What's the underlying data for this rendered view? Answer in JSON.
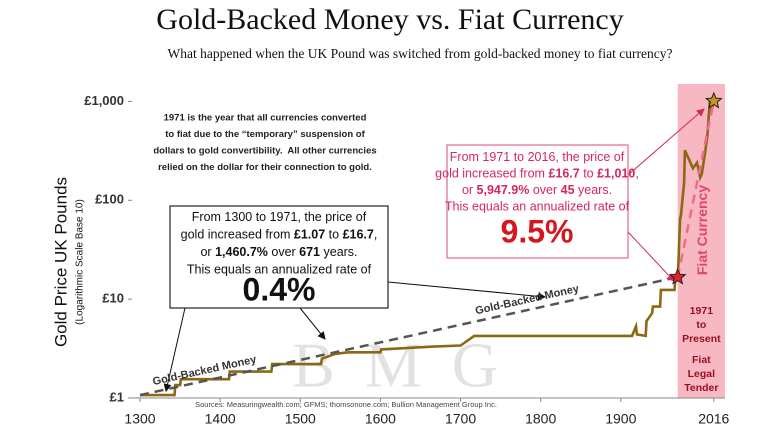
{
  "chart_data": {
    "type": "line",
    "title": "Gold-Backed Money vs. Fiat Currency",
    "subtitle": "What happened when the UK Pound was switched from gold-backed money to fiat currency?",
    "y_label": "Gold Price UK Pounds",
    "y_label_note": "(Logarithmic Scale Base 10)",
    "log_y": true,
    "xlim": [
      1290,
      2030
    ],
    "ylim": [
      1,
      1500
    ],
    "xticks": [
      1300,
      1400,
      1500,
      1600,
      1700,
      1800,
      1900,
      2016
    ],
    "yticks": [
      {
        "value": 1,
        "label": "£1"
      },
      {
        "value": 10,
        "label": "£10"
      },
      {
        "value": 100,
        "label": "£100"
      },
      {
        "value": 1000,
        "label": "£1,000"
      }
    ],
    "series": [
      {
        "color": "#8b6914",
        "x": [
          1300,
          1343,
          1344,
          1350,
          1351,
          1411,
          1412,
          1464,
          1465,
          1526,
          1527,
          1544,
          1560,
          1600,
          1601,
          1663,
          1700,
          1717,
          1914,
          1919,
          1920,
          1931,
          1932,
          1939,
          1940,
          1949,
          1950,
          1967,
          1968,
          1971,
          1972,
          1973,
          1974,
          1975,
          1979,
          1980,
          1985,
          1990,
          1995,
          1999,
          2001,
          2005,
          2008,
          2011,
          2013,
          2016
        ],
        "values": [
          1.07,
          1.07,
          1.35,
          1.35,
          1.55,
          1.55,
          1.85,
          1.85,
          2.2,
          2.2,
          2.5,
          2.8,
          2.9,
          2.9,
          3.1,
          3.3,
          3.4,
          4.25,
          4.25,
          5.3,
          4.4,
          4.25,
          6.0,
          7.2,
          8.4,
          8.4,
          12.4,
          12.4,
          15.5,
          16.7,
          24,
          40,
          65,
          70,
          150,
          320,
          260,
          210,
          240,
          170,
          185,
          300,
          450,
          1000,
          800,
          1010
        ]
      },
      {
        "name": "Gold-Backed Money",
        "color": "#555555",
        "dashed": true,
        "marker_color": "#e3232c",
        "x": [
          1300,
          1971
        ],
        "values": [
          1.07,
          16.7
        ]
      },
      {
        "name": "Fiat Currency",
        "color": "#ee6d86",
        "dashed": true,
        "marker_color": "#c8961e",
        "x": [
          1971,
          2016
        ],
        "values": [
          16.7,
          1010
        ]
      }
    ],
    "shaded_color": "#f7b8c3",
    "shaded_labels": [
      [
        "1971",
        "to",
        "Present"
      ],
      [
        "Fiat",
        "Legal",
        "Tender"
      ]
    ],
    "note": [
      "1971 is the year that all currencies converted",
      "to fiat due to the “temporary” suspension of",
      "dollars to gold convertibility.  All other currencies",
      "relied on the dollar for their connection to gold."
    ],
    "box_gold": {
      "lines": [
        [
          "From 1300 to 1971, the price of"
        ],
        [
          "gold increased from ",
          "£1.07",
          " to ",
          "£16.7",
          ","
        ],
        [
          "or ",
          "1,460.7%",
          " over ",
          "671",
          " years."
        ],
        [
          "This equals an annualized rate of"
        ]
      ],
      "rate": "0.4%"
    },
    "box_fiat": {
      "lines": [
        [
          "From 1971 to 2016, the price of"
        ],
        [
          "gold increased from ",
          "£16.7",
          " to ",
          "£1,010",
          ","
        ],
        [
          "or ",
          "5,947.9%",
          " over ",
          "45",
          " years."
        ],
        [
          "This equals an annualized rate of"
        ]
      ],
      "rate": "9.5%"
    },
    "source": "Sources: Measuringwealth.com; GFMS; thomsonone.com; Bullion Management Group Inc.",
    "watermark": "BMG"
  }
}
